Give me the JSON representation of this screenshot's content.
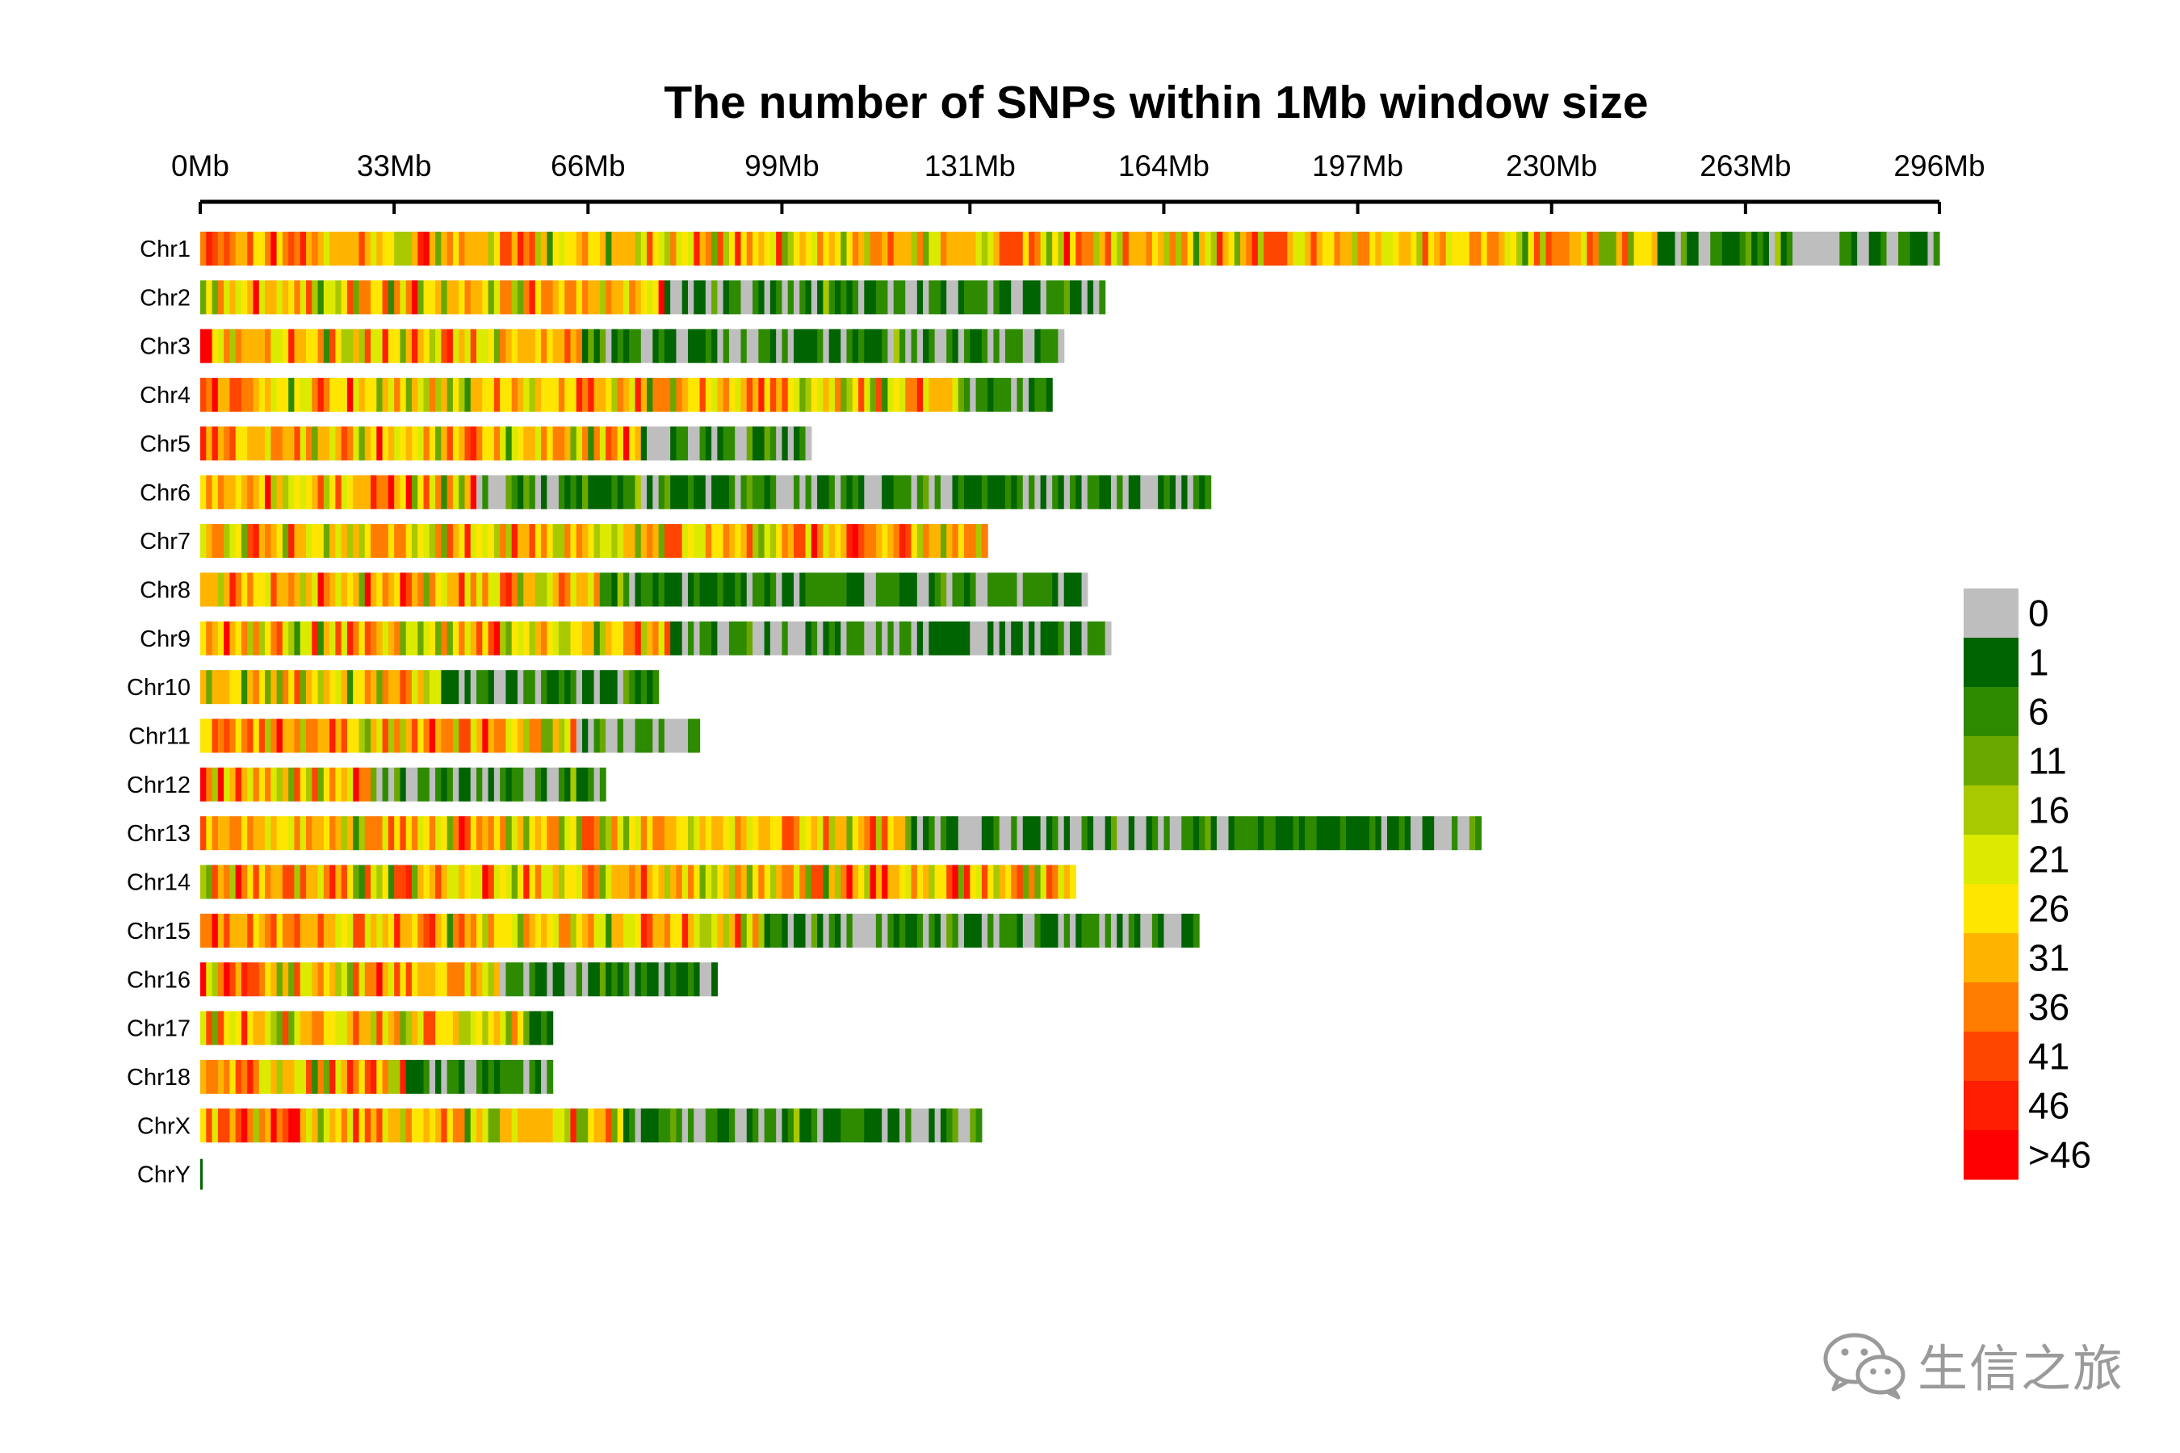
{
  "chart_data": {
    "type": "heatmap",
    "title": "The number of SNPs within 1Mb window size",
    "x_axis": {
      "range_mb": [
        0,
        296
      ],
      "tick_values_mb": [
        0,
        33,
        66,
        99,
        131,
        164,
        197,
        230,
        263,
        296
      ],
      "tick_labels": [
        "0Mb",
        "33Mb",
        "66Mb",
        "99Mb",
        "131Mb",
        "164Mb",
        "197Mb",
        "230Mb",
        "263Mb",
        "296Mb"
      ]
    },
    "chromosomes": [
      {
        "name": "Chr1",
        "length_mb": 296,
        "dense_end_mb": 248
      },
      {
        "name": "Chr2",
        "length_mb": 154,
        "dense_end_mb": 79
      },
      {
        "name": "Chr3",
        "length_mb": 147,
        "dense_end_mb": 65
      },
      {
        "name": "Chr4",
        "length_mb": 145,
        "dense_end_mb": 129
      },
      {
        "name": "Chr5",
        "length_mb": 104,
        "dense_end_mb": 75
      },
      {
        "name": "Chr6",
        "length_mb": 172,
        "dense_end_mb": 47
      },
      {
        "name": "Chr7",
        "length_mb": 134,
        "dense_end_mb": 134
      },
      {
        "name": "Chr8",
        "length_mb": 151,
        "dense_end_mb": 68
      },
      {
        "name": "Chr9",
        "length_mb": 155,
        "dense_end_mb": 80
      },
      {
        "name": "Chr10",
        "length_mb": 78,
        "dense_end_mb": 41
      },
      {
        "name": "Chr11",
        "length_mb": 85,
        "dense_end_mb": 64
      },
      {
        "name": "Chr12",
        "length_mb": 69,
        "dense_end_mb": 29
      },
      {
        "name": "Chr13",
        "length_mb": 218,
        "dense_end_mb": 120
      },
      {
        "name": "Chr14",
        "length_mb": 149,
        "dense_end_mb": 149
      },
      {
        "name": "Chr15",
        "length_mb": 170,
        "dense_end_mb": 96
      },
      {
        "name": "Chr16",
        "length_mb": 88,
        "dense_end_mb": 51
      },
      {
        "name": "Chr17",
        "length_mb": 60,
        "dense_end_mb": 56
      },
      {
        "name": "Chr18",
        "length_mb": 60,
        "dense_end_mb": 35
      },
      {
        "name": "ChrX",
        "length_mb": 133,
        "dense_end_mb": 72
      },
      {
        "name": "ChrY",
        "length_mb": 0.6,
        "dense_end_mb": 0
      }
    ],
    "legend": {
      "labels": [
        "0",
        "1",
        "6",
        "11",
        "16",
        "21",
        "26",
        "31",
        "36",
        "41",
        "46",
        ">46"
      ],
      "colors": [
        "#bebebe",
        "#006400",
        "#2e8b00",
        "#6aa800",
        "#a8c800",
        "#dcea00",
        "#ffe600",
        "#ffb400",
        "#ff7d00",
        "#ff4600",
        "#ff1e00",
        "#ff0000"
      ],
      "position": "right"
    }
  },
  "watermark": {
    "text": "生信之旅",
    "icon": "wechat-icon"
  }
}
